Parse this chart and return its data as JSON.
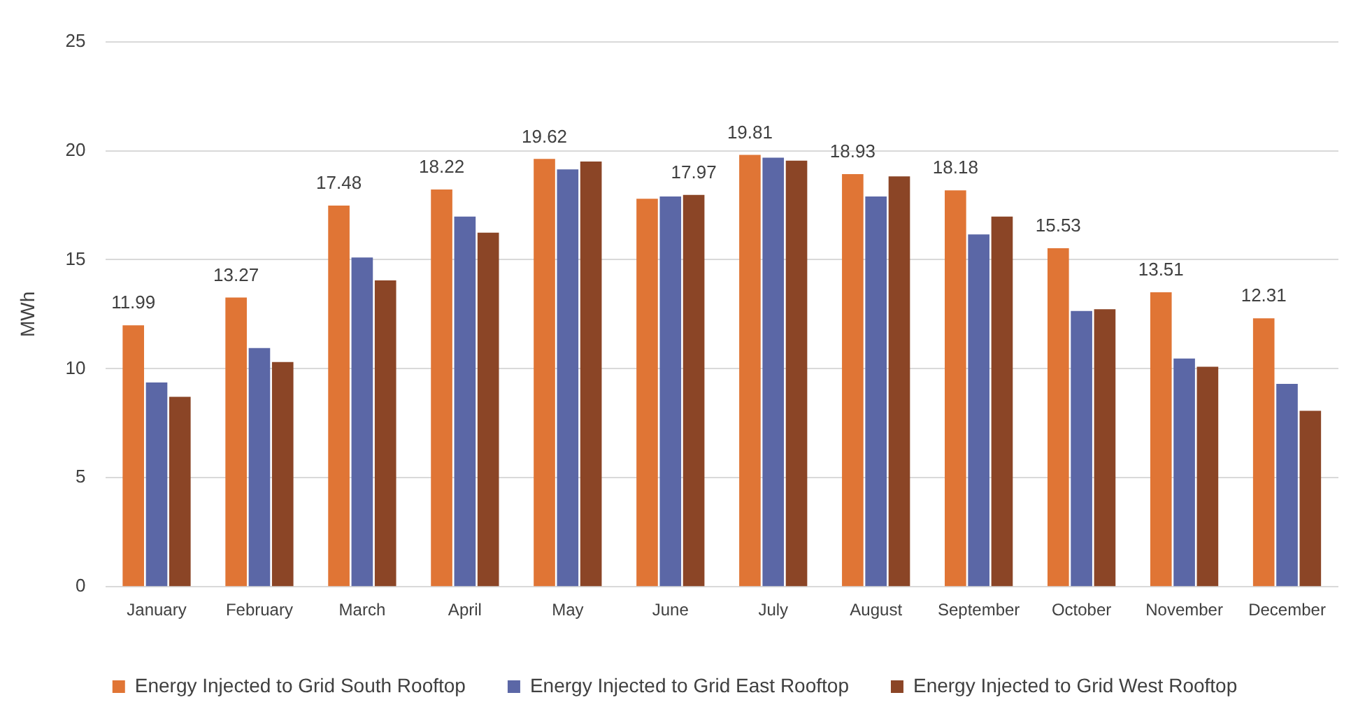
{
  "chart_data": {
    "type": "bar",
    "ylabel": "MWh",
    "categories": [
      "January",
      "February",
      "March",
      "April",
      "May",
      "June",
      "July",
      "August",
      "September",
      "October",
      "November",
      "December"
    ],
    "series": [
      {
        "name": "Energy Injected to Grid South Rooftop",
        "color": "#e07535",
        "values": [
          11.99,
          13.27,
          17.48,
          18.22,
          19.62,
          17.8,
          19.81,
          18.93,
          18.18,
          15.53,
          13.51,
          12.31
        ],
        "value_labels": [
          "11.99",
          "13.27",
          "17.48",
          "18.22",
          "19.62",
          null,
          "19.81",
          "18.93",
          "18.18",
          "15.53",
          "13.51",
          "12.31"
        ]
      },
      {
        "name": "Energy Injected to Grid East Rooftop",
        "color": "#5b67a6",
        "values": [
          9.37,
          10.95,
          15.1,
          16.98,
          19.14,
          17.9,
          19.68,
          17.9,
          16.16,
          12.65,
          10.47,
          9.31
        ]
      },
      {
        "name": "Energy Injected to Grid West Rooftop",
        "color": "#8b4526",
        "values": [
          8.71,
          10.31,
          14.05,
          16.24,
          19.5,
          17.97,
          19.54,
          18.82,
          16.98,
          12.73,
          10.09,
          8.07
        ],
        "value_labels": [
          null,
          null,
          null,
          null,
          null,
          "17.97",
          null,
          null,
          null,
          null,
          null,
          null
        ]
      }
    ],
    "ylim": [
      0,
      25
    ],
    "yticks": [
      0,
      5,
      10,
      15,
      20,
      25
    ],
    "grid": "y",
    "legend": "bottom"
  }
}
